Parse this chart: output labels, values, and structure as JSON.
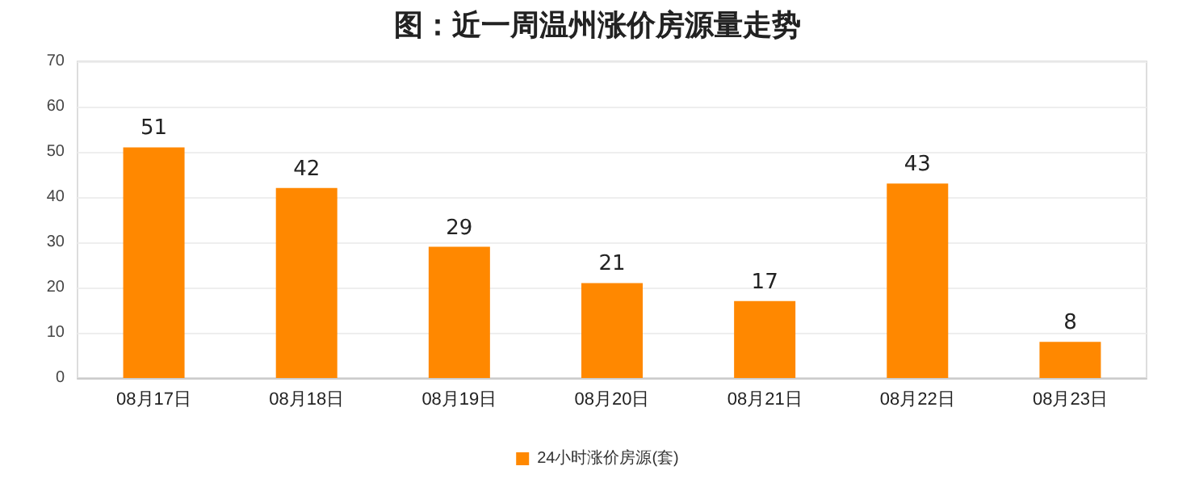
{
  "chart_data": {
    "type": "bar",
    "title": "图：近一周温州涨价房源量走势",
    "categories": [
      "08月17日",
      "08月18日",
      "08月19日",
      "08月20日",
      "08月21日",
      "08月22日",
      "08月23日"
    ],
    "series": [
      {
        "name": "24小时涨价房源(套)",
        "color": "#ff8800",
        "values": [
          51,
          42,
          29,
          21,
          17,
          43,
          8
        ]
      }
    ],
    "ylim": [
      0,
      70
    ],
    "yticks": [
      0,
      10,
      20,
      30,
      40,
      50,
      60,
      70
    ],
    "grid": "y",
    "legend": "bottom",
    "data_labels": true
  }
}
